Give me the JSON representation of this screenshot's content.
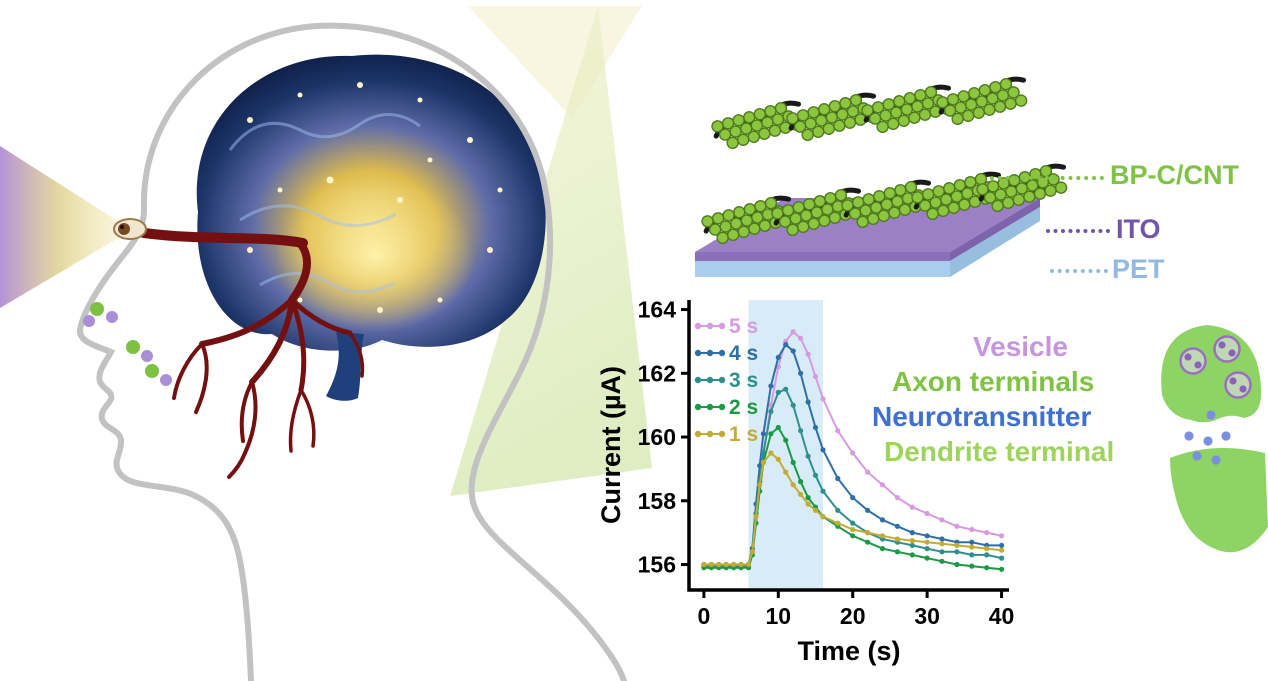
{
  "device": {
    "labels": [
      {
        "text": "BP-C/CNT",
        "color": "#7fc344"
      },
      {
        "text": "ITO",
        "color": "#6f55ab"
      },
      {
        "text": "PET",
        "color": "#93b9e2"
      }
    ]
  },
  "synapse": {
    "labels": [
      {
        "text": "Vesicle",
        "color": "#c695dd"
      },
      {
        "text": "Axon terminals",
        "color": "#7fc344"
      },
      {
        "text": "Neurotransnitter",
        "color": "#3f6fd1"
      },
      {
        "text": "Dendrite terminal",
        "color": "#9ed45c"
      }
    ]
  },
  "chart_data": {
    "type": "line",
    "title": "",
    "xlabel": "Time (s)",
    "ylabel": "Current (µA)",
    "xlim": [
      -2,
      41
    ],
    "ylim": [
      155.2,
      164.3
    ],
    "xticks": [
      0,
      10,
      20,
      30,
      40
    ],
    "yticks": [
      156,
      158,
      160,
      162,
      164
    ],
    "grid": false,
    "legend_position": "upper-left",
    "shaded_region": {
      "x0": 6,
      "x1": 16,
      "color": "#d8ecf8"
    },
    "x": [
      0,
      1,
      2,
      3,
      4,
      5,
      6,
      6.5,
      7,
      7.5,
      8,
      9,
      10,
      11,
      12,
      13,
      14,
      15,
      16,
      18,
      20,
      22,
      24,
      26,
      28,
      30,
      32,
      34,
      36,
      38,
      40
    ],
    "series": [
      {
        "name": "5 s",
        "color": "#d79ae0",
        "values": [
          156,
          156,
          156,
          156,
          156,
          156,
          156,
          156.4,
          157.6,
          158.6,
          159.5,
          161.0,
          162.2,
          163.0,
          163.3,
          163.1,
          162.6,
          161.9,
          161.2,
          160.2,
          159.5,
          158.9,
          158.5,
          158.1,
          157.8,
          157.6,
          157.4,
          157.2,
          157.1,
          157.0,
          156.9
        ]
      },
      {
        "name": "4 s",
        "color": "#2f6fa8",
        "values": [
          156,
          156,
          156,
          156,
          156,
          156,
          156,
          156.5,
          157.9,
          159.1,
          160.1,
          161.6,
          162.5,
          162.9,
          162.7,
          162.0,
          161.1,
          160.3,
          159.6,
          158.7,
          158.1,
          157.7,
          157.4,
          157.2,
          157.0,
          156.9,
          156.8,
          156.7,
          156.7,
          156.6,
          156.6
        ]
      },
      {
        "name": "3 s",
        "color": "#2f8f8f",
        "values": [
          155.95,
          155.95,
          155.95,
          155.95,
          155.95,
          155.95,
          155.95,
          156.4,
          157.6,
          158.6,
          159.5,
          160.8,
          161.4,
          161.5,
          161.0,
          160.2,
          159.4,
          158.8,
          158.3,
          157.7,
          157.3,
          157.0,
          156.8,
          156.7,
          156.6,
          156.5,
          156.4,
          156.4,
          156.3,
          156.3,
          156.2
        ]
      },
      {
        "name": "2 s",
        "color": "#1b9a44",
        "values": [
          155.9,
          155.9,
          155.9,
          155.9,
          155.9,
          155.9,
          155.9,
          156.3,
          157.3,
          158.3,
          159.2,
          160.1,
          160.3,
          159.9,
          159.2,
          158.6,
          158.1,
          157.8,
          157.5,
          157.2,
          156.9,
          156.7,
          156.5,
          156.4,
          156.3,
          156.2,
          156.1,
          156.0,
          155.95,
          155.9,
          155.85
        ]
      },
      {
        "name": "1 s",
        "color": "#c3ac35",
        "values": [
          156,
          156,
          156,
          156,
          156,
          156,
          156,
          156.4,
          157.5,
          158.5,
          159.2,
          159.5,
          159.3,
          158.9,
          158.5,
          158.2,
          157.9,
          157.7,
          157.5,
          157.3,
          157.1,
          157.0,
          156.9,
          156.8,
          156.75,
          156.7,
          156.65,
          156.6,
          156.55,
          156.5,
          156.45
        ]
      }
    ]
  }
}
